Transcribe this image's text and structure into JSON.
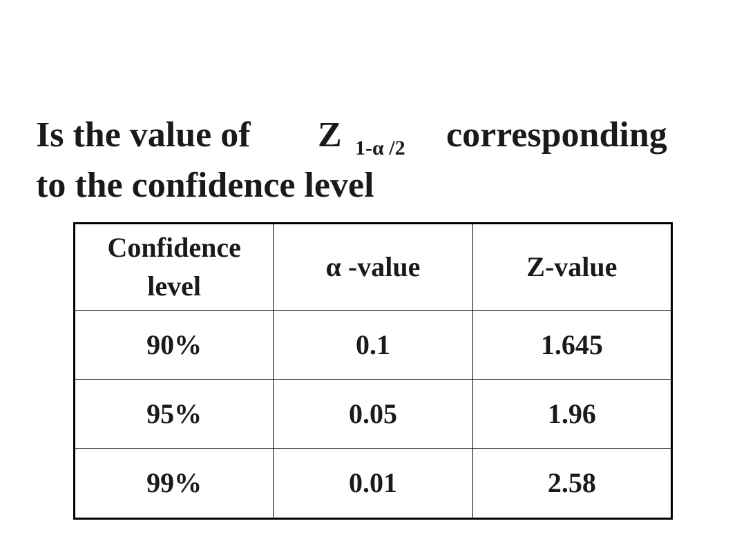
{
  "title": {
    "lead": "Is the value of",
    "symbol": "Z",
    "subscript": "1-α /2",
    "tail": "corresponding",
    "line2": "to the confidence level"
  },
  "table": {
    "header": [
      "Confidence level",
      "α -value",
      "Z-value"
    ],
    "rows": [
      [
        "90%",
        "0.1",
        "1.645"
      ],
      [
        "95%",
        "0.05",
        "1.96"
      ],
      [
        "99%",
        "0.01",
        "2.58"
      ]
    ]
  }
}
